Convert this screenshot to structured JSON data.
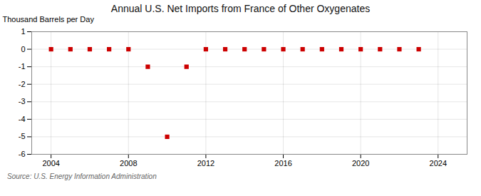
{
  "chart_data": {
    "type": "scatter",
    "title": "Annual U.S. Net Imports from France of Other Oxygenates",
    "ylabel": "Thousand Barrels per Day",
    "source": "Source: U.S. Energy Information Administration",
    "x": [
      2004,
      2005,
      2006,
      2007,
      2008,
      2009,
      2010,
      2011,
      2012,
      2013,
      2014,
      2015,
      2016,
      2017,
      2018,
      2019,
      2020,
      2021,
      2022,
      2023
    ],
    "values": [
      0,
      0,
      0,
      0,
      0,
      -1,
      -5,
      -1,
      0,
      0,
      0,
      0,
      0,
      0,
      0,
      0,
      0,
      0,
      0,
      0
    ],
    "color": "#cc0000",
    "marker": "square",
    "xlim": [
      2003.0,
      2025.5
    ],
    "xticks": [
      2004,
      2008,
      2012,
      2016,
      2020,
      2024
    ],
    "ylim": [
      -6,
      1
    ],
    "yticks": [
      1,
      0,
      -1,
      -2,
      -3,
      -4,
      -5,
      -6
    ],
    "grid": true
  }
}
